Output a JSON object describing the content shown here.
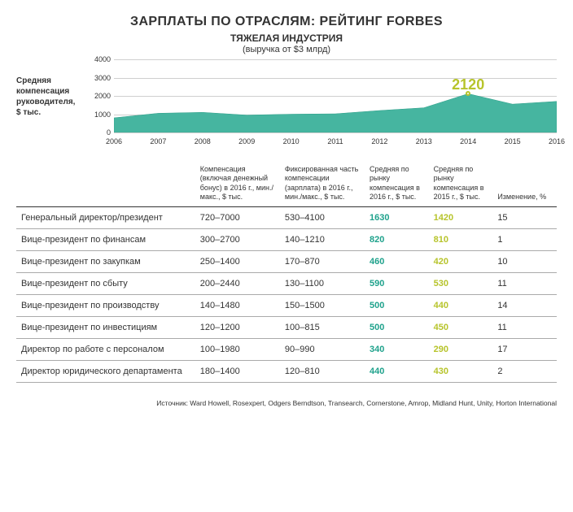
{
  "title": "ЗАРПЛАТЫ ПО ОТРАСЛЯМ: РЕЙТИНГ FORBES",
  "subtitle": "ТЯЖЕЛАЯ ИНДУСТРИЯ",
  "note": "(выручка от $3 млрд)",
  "ylabel_line1": "Средняя",
  "ylabel_line2": "компенсация",
  "ylabel_line3": "руководителя,",
  "ylabel_line4": "$ тыс.",
  "chart": {
    "type": "area",
    "years": [
      "2006",
      "2007",
      "2008",
      "2009",
      "2010",
      "2011",
      "2012",
      "2013",
      "2014",
      "2015",
      "2016"
    ],
    "values": [
      800,
      1050,
      1100,
      950,
      1000,
      1020,
      1200,
      1350,
      2120,
      1550,
      1700
    ],
    "ymin": 0,
    "ymax": 4000,
    "ytick_step": 1000,
    "yticks": [
      "0",
      "1000",
      "2000",
      "3000",
      "4000"
    ],
    "area_fill": "#46b5a0",
    "area_stroke": "#2e9e88",
    "grid_color": "#cfcfcf",
    "callout_year_index": 8,
    "callout_value": "2120",
    "callout_color": "#b7c42b",
    "marker_fill": "#ffffff",
    "marker_border": "#b7c42b"
  },
  "columns": {
    "c0": "",
    "c1": "Компенсация (включая денежный бонус) в 2016 г., мин./макс., $ тыс.",
    "c2": "Фиксированная часть компенсации (зарплата) в 2016 г., мин./макс., $ тыс.",
    "c3": "Средняя по рынку компенсация в 2016 г., $ тыс.",
    "c4": "Средняя по рынку компенсация в 2015 г., $ тыс.",
    "c5": "Изменение, %"
  },
  "highlight_2016_color": "#1fa28c",
  "highlight_2015_color": "#b7c42b",
  "rows": [
    {
      "pos": "Генеральный директор/президент",
      "total": "720–7000",
      "fixed": "530–4100",
      "avg16": "1630",
      "avg15": "1420",
      "chg": "15"
    },
    {
      "pos": "Вице-президент по финансам",
      "total": "300–2700",
      "fixed": "140–1210",
      "avg16": "820",
      "avg15": "810",
      "chg": "1"
    },
    {
      "pos": "Вице-президент по закупкам",
      "total": "250–1400",
      "fixed": "170–870",
      "avg16": "460",
      "avg15": "420",
      "chg": "10"
    },
    {
      "pos": "Вице-президент по сбыту",
      "total": "200–2440",
      "fixed": "130–1100",
      "avg16": "590",
      "avg15": "530",
      "chg": "11"
    },
    {
      "pos": "Вице-президент по производству",
      "total": "140–1480",
      "fixed": "150–1500",
      "avg16": "500",
      "avg15": "440",
      "chg": "14"
    },
    {
      "pos": "Вице-президент по инвестициям",
      "total": "120–1200",
      "fixed": "100–815",
      "avg16": "500",
      "avg15": "450",
      "chg": "11"
    },
    {
      "pos": "Директор по работе с персоналом",
      "total": "100–1980",
      "fixed": "90–990",
      "avg16": "340",
      "avg15": "290",
      "chg": "17"
    },
    {
      "pos": "Директор юридического департамента",
      "total": "180–1400",
      "fixed": "120–810",
      "avg16": "440",
      "avg15": "430",
      "chg": "2"
    }
  ],
  "source": "Источник: Ward Howell, Rosexpert, Odgers Berndtson, Transearch, Cornerstone, Amrop, Midland Hunt, Unity, Horton International"
}
